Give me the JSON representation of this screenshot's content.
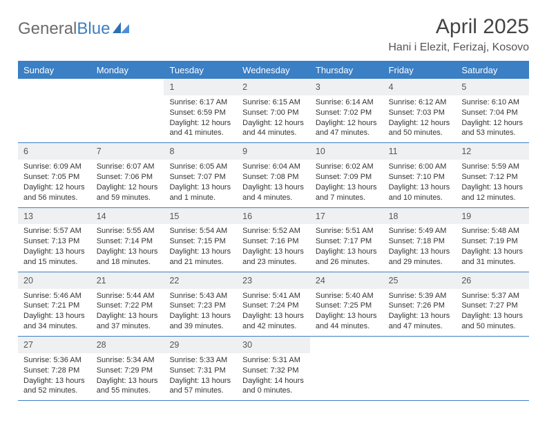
{
  "brand": {
    "part1": "General",
    "part2": "Blue"
  },
  "title": "April 2025",
  "location": "Hani i Elezit, Ferizaj, Kosovo",
  "colors": {
    "header_bg": "#3b7fc4",
    "header_text": "#ffffff",
    "daynum_bg": "#eef0f2",
    "text": "#333333",
    "rule": "#3b7fc4"
  },
  "fonts": {
    "base_size_pt": 11,
    "title_size_pt": 30,
    "location_size_pt": 16,
    "weekday_size_pt": 13
  },
  "layout": {
    "columns": 7,
    "rows": 5,
    "first_weekday_index": 2,
    "days_in_month": 30
  },
  "weekdays": [
    "Sunday",
    "Monday",
    "Tuesday",
    "Wednesday",
    "Thursday",
    "Friday",
    "Saturday"
  ],
  "days": [
    {
      "n": 1,
      "sunrise": "6:17 AM",
      "sunset": "6:59 PM",
      "daylight": "12 hours and 41 minutes."
    },
    {
      "n": 2,
      "sunrise": "6:15 AM",
      "sunset": "7:00 PM",
      "daylight": "12 hours and 44 minutes."
    },
    {
      "n": 3,
      "sunrise": "6:14 AM",
      "sunset": "7:02 PM",
      "daylight": "12 hours and 47 minutes."
    },
    {
      "n": 4,
      "sunrise": "6:12 AM",
      "sunset": "7:03 PM",
      "daylight": "12 hours and 50 minutes."
    },
    {
      "n": 5,
      "sunrise": "6:10 AM",
      "sunset": "7:04 PM",
      "daylight": "12 hours and 53 minutes."
    },
    {
      "n": 6,
      "sunrise": "6:09 AM",
      "sunset": "7:05 PM",
      "daylight": "12 hours and 56 minutes."
    },
    {
      "n": 7,
      "sunrise": "6:07 AM",
      "sunset": "7:06 PM",
      "daylight": "12 hours and 59 minutes."
    },
    {
      "n": 8,
      "sunrise": "6:05 AM",
      "sunset": "7:07 PM",
      "daylight": "13 hours and 1 minute."
    },
    {
      "n": 9,
      "sunrise": "6:04 AM",
      "sunset": "7:08 PM",
      "daylight": "13 hours and 4 minutes."
    },
    {
      "n": 10,
      "sunrise": "6:02 AM",
      "sunset": "7:09 PM",
      "daylight": "13 hours and 7 minutes."
    },
    {
      "n": 11,
      "sunrise": "6:00 AM",
      "sunset": "7:10 PM",
      "daylight": "13 hours and 10 minutes."
    },
    {
      "n": 12,
      "sunrise": "5:59 AM",
      "sunset": "7:12 PM",
      "daylight": "13 hours and 12 minutes."
    },
    {
      "n": 13,
      "sunrise": "5:57 AM",
      "sunset": "7:13 PM",
      "daylight": "13 hours and 15 minutes."
    },
    {
      "n": 14,
      "sunrise": "5:55 AM",
      "sunset": "7:14 PM",
      "daylight": "13 hours and 18 minutes."
    },
    {
      "n": 15,
      "sunrise": "5:54 AM",
      "sunset": "7:15 PM",
      "daylight": "13 hours and 21 minutes."
    },
    {
      "n": 16,
      "sunrise": "5:52 AM",
      "sunset": "7:16 PM",
      "daylight": "13 hours and 23 minutes."
    },
    {
      "n": 17,
      "sunrise": "5:51 AM",
      "sunset": "7:17 PM",
      "daylight": "13 hours and 26 minutes."
    },
    {
      "n": 18,
      "sunrise": "5:49 AM",
      "sunset": "7:18 PM",
      "daylight": "13 hours and 29 minutes."
    },
    {
      "n": 19,
      "sunrise": "5:48 AM",
      "sunset": "7:19 PM",
      "daylight": "13 hours and 31 minutes."
    },
    {
      "n": 20,
      "sunrise": "5:46 AM",
      "sunset": "7:21 PM",
      "daylight": "13 hours and 34 minutes."
    },
    {
      "n": 21,
      "sunrise": "5:44 AM",
      "sunset": "7:22 PM",
      "daylight": "13 hours and 37 minutes."
    },
    {
      "n": 22,
      "sunrise": "5:43 AM",
      "sunset": "7:23 PM",
      "daylight": "13 hours and 39 minutes."
    },
    {
      "n": 23,
      "sunrise": "5:41 AM",
      "sunset": "7:24 PM",
      "daylight": "13 hours and 42 minutes."
    },
    {
      "n": 24,
      "sunrise": "5:40 AM",
      "sunset": "7:25 PM",
      "daylight": "13 hours and 44 minutes."
    },
    {
      "n": 25,
      "sunrise": "5:39 AM",
      "sunset": "7:26 PM",
      "daylight": "13 hours and 47 minutes."
    },
    {
      "n": 26,
      "sunrise": "5:37 AM",
      "sunset": "7:27 PM",
      "daylight": "13 hours and 50 minutes."
    },
    {
      "n": 27,
      "sunrise": "5:36 AM",
      "sunset": "7:28 PM",
      "daylight": "13 hours and 52 minutes."
    },
    {
      "n": 28,
      "sunrise": "5:34 AM",
      "sunset": "7:29 PM",
      "daylight": "13 hours and 55 minutes."
    },
    {
      "n": 29,
      "sunrise": "5:33 AM",
      "sunset": "7:31 PM",
      "daylight": "13 hours and 57 minutes."
    },
    {
      "n": 30,
      "sunrise": "5:31 AM",
      "sunset": "7:32 PM",
      "daylight": "14 hours and 0 minutes."
    }
  ],
  "labels": {
    "sunrise": "Sunrise:",
    "sunset": "Sunset:",
    "daylight": "Daylight:"
  }
}
